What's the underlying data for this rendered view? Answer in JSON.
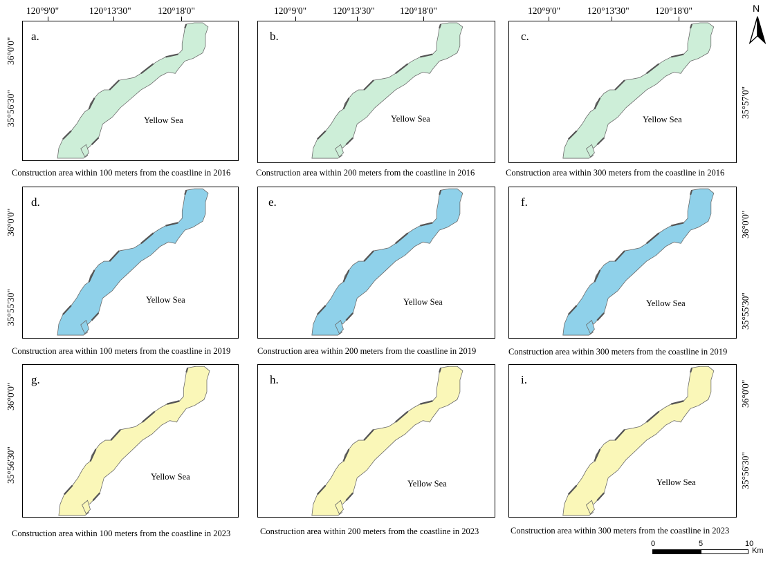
{
  "sea_label": "Yellow Sea",
  "colors": {
    "green_fill": "#cdeed8",
    "blue_fill": "#8fd1ea",
    "yellow_fill": "#faf7b8",
    "coast_stroke": "#6b6b6b",
    "construction": "#555555"
  },
  "panels": [
    {
      "label": "a.",
      "caption": "Construction area within 100 meters from the coastline in 2016",
      "year": 2016,
      "distance_m": 100
    },
    {
      "label": "b.",
      "caption": "Construction area within 200 meters from the coastline in 2016",
      "year": 2016,
      "distance_m": 200
    },
    {
      "label": "c.",
      "caption": "Construction area within 300 meters from the coastline in 2016",
      "year": 2016,
      "distance_m": 300
    },
    {
      "label": "d.",
      "caption": "Construction area within 100 meters from the coastline in 2019",
      "year": 2019,
      "distance_m": 100
    },
    {
      "label": "e.",
      "caption": "Construction area within 200 meters from the coastline in 2019",
      "year": 2019,
      "distance_m": 200
    },
    {
      "label": "f.",
      "caption": "Construction area within 300 meters from the coastline in 2019",
      "year": 2019,
      "distance_m": 300
    },
    {
      "label": "g.",
      "caption": "Construction area within 100 meters from the coastline in 2023",
      "year": 2023,
      "distance_m": 100
    },
    {
      "label": "h.",
      "caption": "Construction area within 200 meters from the coastline in 2023",
      "year": 2023,
      "distance_m": 200
    },
    {
      "label": "i.",
      "caption": "Construction area within 300 meters from the coastline in 2023",
      "year": 2023,
      "distance_m": 300
    }
  ],
  "top_longitudes": {
    "col1": [
      "120°9'0\"",
      "120°13'30\"",
      "120°18'0\""
    ],
    "col2": [
      "120°9'0\"",
      "120°13'30\"",
      "120°18'0\""
    ],
    "col3": [
      "120°9'0\"",
      "120°13'30\"",
      "120°18'0\""
    ]
  },
  "left_latitudes": {
    "row1": [
      "36°0'0\"",
      "35°56'30\""
    ],
    "row2": [
      "36°0'0\"",
      "35°55'30\""
    ],
    "row3": [
      "36°0'0\"",
      "35°56'30\""
    ]
  },
  "right_latitudes": {
    "row1": [
      "35°57'0\""
    ],
    "row2": [
      "36°0'0\"",
      "35°55'30\""
    ],
    "row3": [
      "36°0'0\"",
      "35°56'30\""
    ]
  },
  "north_arrow": {
    "letter": "N"
  },
  "scale_bar": {
    "ticks": [
      "0",
      "5",
      "10"
    ],
    "unit": "Km"
  }
}
